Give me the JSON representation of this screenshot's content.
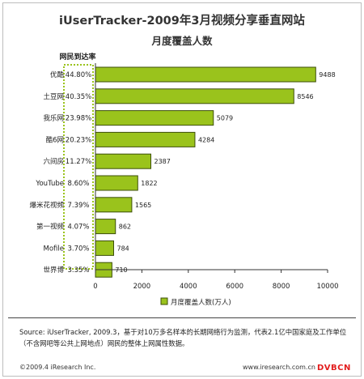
{
  "title": "iUserTracker-2009年3月视频分享垂直网站",
  "subtitle": "月度覆盖人数",
  "rate_header": "网民到达率",
  "legend_label": "月度覆盖人数(万人)",
  "source_note": "Source: iUserTracker, 2009.3，基于对10万多名样本的长期网络行为监测，代表2.1亿中国家庭及工作单位（不含网吧等公共上网地点）网民的整体上网属性数据。",
  "footer_left": "©2009.4 iResearch Inc.",
  "footer_right": "www.iresearch.com.cn",
  "stamp": "DVBCN",
  "colors": {
    "bar_fill": "#9ac31c",
    "bar_stroke": "#3d4f0a",
    "rate_box": "#9ac31c",
    "stamp": "#e21d1d"
  },
  "chart_data": {
    "type": "bar",
    "orientation": "horizontal",
    "categories": [
      "优酷",
      "土豆网",
      "我乐网",
      "酷6网",
      "六间房",
      "YouTube",
      "爆米花视频",
      "第一视频",
      "Mofile",
      "世界博"
    ],
    "rates": [
      "44.80%",
      "40.35%",
      "23.98%",
      "20.23%",
      "11.27%",
      "8.60%",
      "7.39%",
      "4.07%",
      "3.70%",
      "3.35%"
    ],
    "series": [
      {
        "name": "月度覆盖人数(万人)",
        "values": [
          9488,
          8546,
          5079,
          4284,
          2387,
          1822,
          1565,
          862,
          784,
          710
        ]
      }
    ],
    "xlim": [
      0,
      10000
    ],
    "xticks": [
      0,
      2000,
      4000,
      6000,
      8000,
      10000
    ],
    "grid": false,
    "legend_position": "bottom"
  }
}
